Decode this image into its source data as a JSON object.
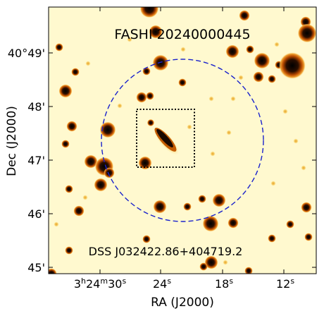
{
  "image": {
    "title": "FASHI 20240000445",
    "source_label": "DSS J032422.86+404719.2",
    "x_axis_label": "RA (J2000)",
    "y_axis_label": "Dec (J2000)",
    "x_ticks": {
      "first": "3h24m30s",
      "first_parts": {
        "h": "3",
        "h_unit": "h",
        "m": "24",
        "m_unit": "m",
        "s": "30",
        "s_unit": "s"
      },
      "others": [
        {
          "num": "24",
          "unit": "s"
        },
        {
          "num": "18",
          "unit": "s"
        },
        {
          "num": "12",
          "unit": "s"
        }
      ]
    },
    "y_ticks": [
      "40°49'",
      "48'",
      "47'",
      "46'",
      "45'"
    ],
    "colors": {
      "background": "#fff9cf",
      "star_core": "#1a0a00",
      "star_halo": "#e07a10",
      "beam_circle": "#1a22cc",
      "box": "#000000"
    }
  }
}
